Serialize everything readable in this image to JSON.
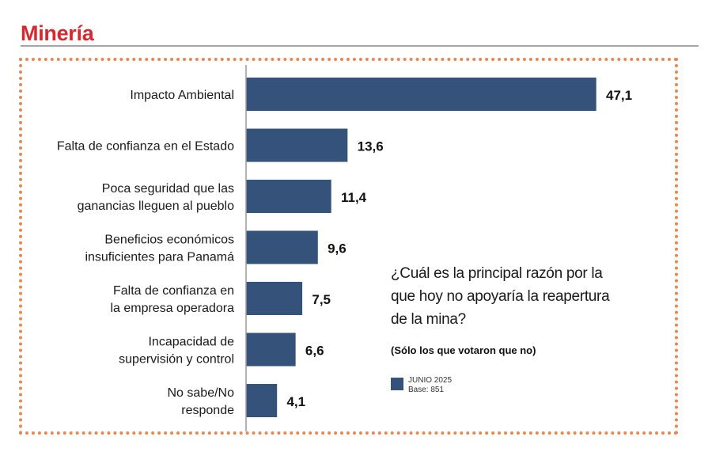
{
  "header": {
    "title": "Minería"
  },
  "question": {
    "text": "¿Cuál es la principal razón por la que hoy no apoyaría la reapertura de la mina?",
    "note": "(Sólo los que votaron que no)"
  },
  "legend": {
    "series_label": "JUNIO 2025",
    "base_label": "Base: 851"
  },
  "colors": {
    "title": "#d7282f",
    "bar": "#34527a",
    "frame": "#e8874f",
    "rule": "#a6a6a6"
  },
  "chart_data": {
    "type": "bar",
    "orientation": "horizontal",
    "title": "¿Cuál es la principal razón por la que hoy no apoyaría la reapertura de la mina?",
    "subtitle": "(Sólo los que votaron que no)",
    "xlabel": "",
    "ylabel": "",
    "xlim": [
      0,
      50
    ],
    "grid": false,
    "legend_position": "bottom-right",
    "categories": [
      [
        "Impacto Ambiental"
      ],
      [
        "Falta de confianza en el Estado"
      ],
      [
        "Poca seguridad que las",
        "ganancias lleguen al pueblo"
      ],
      [
        "Beneficios económicos",
        "insuficientes para Panamá"
      ],
      [
        "Falta de confianza en",
        "la empresa operadora"
      ],
      [
        "Incapacidad de",
        "supervisión y control"
      ],
      [
        "No sabe/No",
        "responde"
      ]
    ],
    "series": [
      {
        "name": "JUNIO 2025",
        "values": [
          47.1,
          13.6,
          11.4,
          9.6,
          7.5,
          6.6,
          4.1
        ],
        "labels": [
          "47,1",
          "13,6",
          "11,4",
          "9,6",
          "7,5",
          "6,6",
          "4,1"
        ]
      }
    ]
  }
}
